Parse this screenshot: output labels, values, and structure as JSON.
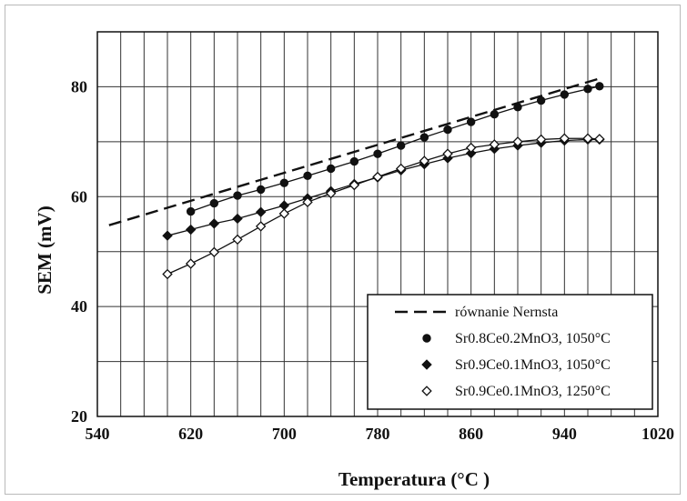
{
  "chart_data": {
    "type": "line",
    "xlabel": "Temperatura (°C )",
    "ylabel": "SEM (mV)",
    "xlim": [
      540,
      1020
    ],
    "ylim": [
      20,
      90
    ],
    "xticks": [
      540,
      620,
      700,
      780,
      860,
      940,
      1020
    ],
    "yticks": [
      20,
      40,
      60,
      80
    ],
    "x_tick_labels": [
      "540",
      "620",
      "700",
      "780",
      "860",
      "940",
      "1020"
    ],
    "y_tick_labels": [
      "20",
      "40",
      "60",
      "80"
    ],
    "grid": true,
    "legend_position": "bottom-right",
    "series": [
      {
        "name": "równanie Nernsta",
        "style": "dashed",
        "marker": "none",
        "color": "#111111",
        "x": [
          550,
          970
        ],
        "y": [
          54.8,
          81.5
        ]
      },
      {
        "name": "Sr0.8Ce0.2MnO3, 1050°C",
        "style": "solid",
        "marker": "circle",
        "color": "#111111",
        "x": [
          620,
          640,
          660,
          680,
          700,
          720,
          740,
          760,
          780,
          800,
          820,
          840,
          860,
          880,
          900,
          920,
          940,
          960,
          970
        ],
        "y": [
          57.3,
          58.8,
          60.2,
          61.3,
          62.5,
          63.8,
          65.1,
          66.4,
          67.8,
          69.3,
          70.8,
          72.2,
          73.6,
          75.0,
          76.3,
          77.5,
          78.6,
          79.6,
          80.1
        ]
      },
      {
        "name": "Sr0.9Ce0.1MnO3, 1050°C",
        "style": "solid",
        "marker": "diamond-filled",
        "color": "#111111",
        "x": [
          600,
          620,
          640,
          660,
          680,
          700,
          720,
          740,
          760,
          780,
          800,
          820,
          840,
          860,
          880,
          900,
          920,
          940,
          960,
          970
        ],
        "y": [
          52.9,
          54.0,
          55.1,
          56.0,
          57.2,
          58.4,
          59.7,
          61.0,
          62.3,
          63.5,
          64.8,
          65.9,
          67.0,
          67.9,
          68.7,
          69.3,
          69.8,
          70.2,
          70.4,
          70.4
        ]
      },
      {
        "name": "Sr0.9Ce0.1MnO3, 1250°C",
        "style": "solid",
        "marker": "diamond-open",
        "color": "#111111",
        "x": [
          600,
          620,
          640,
          660,
          680,
          700,
          720,
          740,
          760,
          780,
          800,
          820,
          840,
          860,
          880,
          900,
          920,
          940,
          960,
          970
        ],
        "y": [
          45.9,
          47.8,
          49.9,
          52.2,
          54.6,
          56.9,
          59.0,
          60.6,
          62.1,
          63.6,
          65.1,
          66.5,
          67.8,
          68.9,
          69.5,
          70.0,
          70.4,
          70.6,
          70.6,
          70.5
        ]
      }
    ]
  }
}
